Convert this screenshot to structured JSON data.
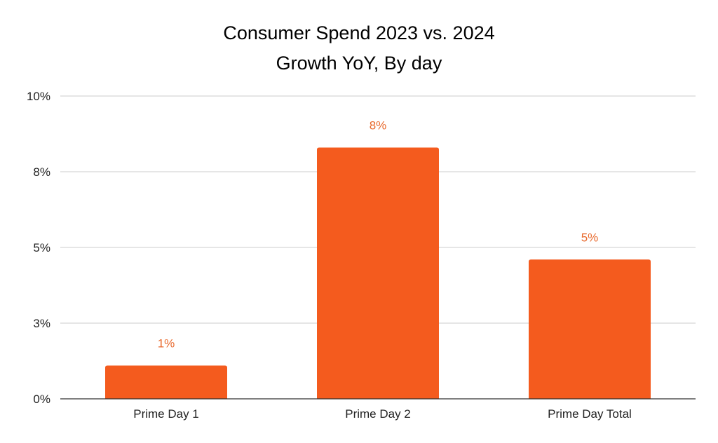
{
  "chart_data": {
    "type": "bar",
    "title": "Consumer Spend 2023 vs. 2024",
    "subtitle": "Growth YoY, By day",
    "xlabel": "",
    "ylabel": "",
    "categories": [
      "Prime Day 1",
      "Prime Day 2",
      "Prime Day Total"
    ],
    "values": [
      1.1,
      8.3,
      4.6
    ],
    "data_labels": [
      "1%",
      "8%",
      "5%"
    ],
    "ylim": [
      0,
      10
    ],
    "yticks": [
      0,
      2.5,
      5,
      7.5,
      10
    ],
    "ytick_labels": [
      "0%",
      "3%",
      "5%",
      "8%",
      "10%"
    ],
    "grid": true,
    "legend": "none",
    "bar_color": "#f45b1e",
    "label_color": "#e86a2e"
  }
}
